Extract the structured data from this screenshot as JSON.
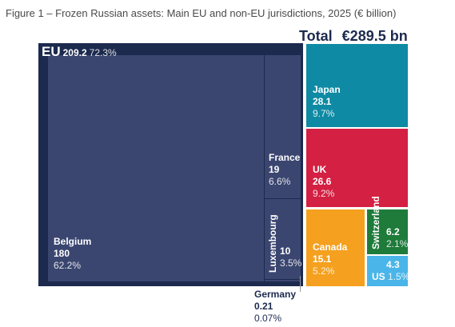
{
  "title": "Figure 1 – Frozen Russian assets: Main EU and non-EU jurisdictions, 2025 (€ billion)",
  "total": {
    "label": "Total",
    "value": "€289.5 bn"
  },
  "colors": {
    "eu": "#1c2a4e",
    "belgium": "#3b4670",
    "france": "#3b4670",
    "luxembourg": "#3b4670",
    "germany": "#3b4670",
    "japan": "#0f8aa4",
    "uk": "#d42042",
    "canada": "#f5a01e",
    "switzerland": "#1e7b3a",
    "us": "#4ab5e8"
  },
  "chart_data": {
    "type": "treemap",
    "title": "Figure 1 – Frozen Russian assets: Main EU and non-EU jurisdictions, 2025 (€ billion)",
    "total": 289.5,
    "unit": "€ billion",
    "groups": [
      {
        "name": "EU",
        "value": 209.2,
        "share": "72.3%",
        "children": [
          {
            "name": "Belgium",
            "value": 180,
            "share": "62.2%"
          },
          {
            "name": "France",
            "value": 19,
            "share": "6.6%"
          },
          {
            "name": "Luxembourg",
            "value": 10,
            "share": "3.5%"
          },
          {
            "name": "Germany",
            "value": 0.21,
            "share": "0.07%"
          }
        ]
      },
      {
        "name": "Japan",
        "value": 28.1,
        "share": "9.7%"
      },
      {
        "name": "UK",
        "value": 26.6,
        "share": "9.2%"
      },
      {
        "name": "Canada",
        "value": 15.1,
        "share": "5.2%"
      },
      {
        "name": "Switzerland",
        "value": 6.2,
        "share": "2.1%"
      },
      {
        "name": "US",
        "value": 4.3,
        "share": "1.5%"
      }
    ]
  },
  "labels": {
    "eu": {
      "name": "EU",
      "value": "209.2",
      "pct": "72.3%"
    },
    "belgium": {
      "name": "Belgium",
      "value": "180",
      "pct": "62.2%"
    },
    "france": {
      "name": "France",
      "value": "19",
      "pct": "6.6%"
    },
    "luxembourg": {
      "name": "Luxembourg",
      "value": "10",
      "pct": "3.5%"
    },
    "germany": {
      "name": "Germany",
      "value": "0.21",
      "pct": "0.07%"
    },
    "japan": {
      "name": "Japan",
      "value": "28.1",
      "pct": "9.7%"
    },
    "uk": {
      "name": "UK",
      "value": "26.6",
      "pct": "9.2%"
    },
    "canada": {
      "name": "Canada",
      "value": "15.1",
      "pct": "5.2%"
    },
    "switzerland": {
      "name": "Switzerland",
      "value": "6.2",
      "pct": "2.1%"
    },
    "us": {
      "name": "US",
      "value": "4.3",
      "pct": "1.5%"
    }
  }
}
